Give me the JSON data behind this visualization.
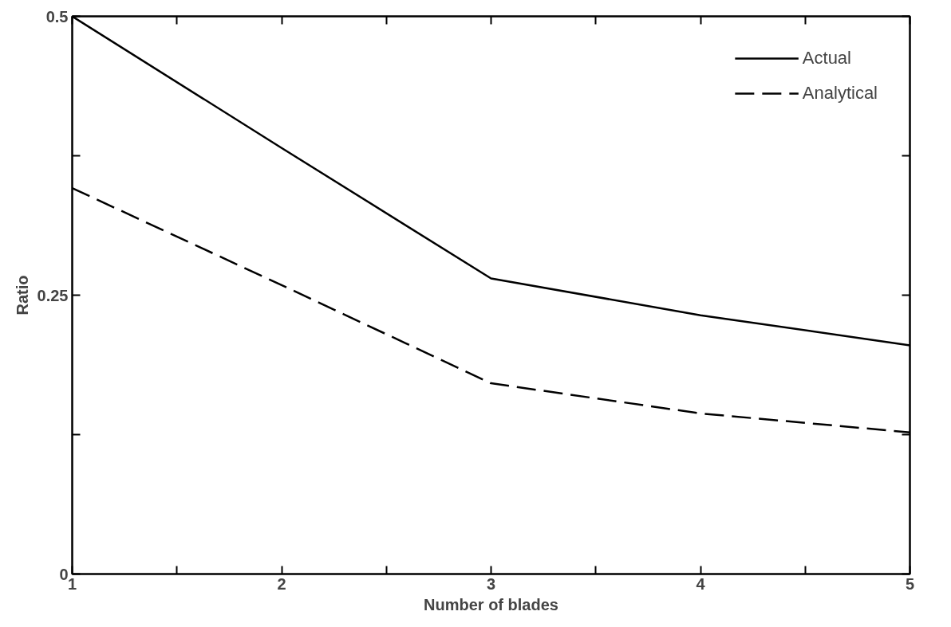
{
  "chart_data": {
    "type": "line",
    "xlabel": "Number of blades",
    "ylabel": "Ratio",
    "x": [
      1,
      2,
      3,
      4,
      5
    ],
    "series": [
      {
        "name": "Actual",
        "color": "#000000",
        "line_style": "solid",
        "values": [
          0.5,
          0.382,
          0.265,
          0.232,
          0.205
        ]
      },
      {
        "name": "Analytical",
        "color": "#000000",
        "line_style": "dashed",
        "values": [
          0.346,
          0.259,
          0.171,
          0.144,
          0.127
        ]
      }
    ],
    "xlim": [
      1,
      5
    ],
    "ylim": [
      0,
      0.5
    ],
    "xticks": [
      1,
      {
        "value": 1.5,
        "label": null
      },
      2,
      {
        "value": 2.5,
        "label": null
      },
      3,
      {
        "value": 3.5,
        "label": null
      },
      4,
      {
        "value": 4.5,
        "label": null
      },
      5
    ],
    "yticks": [
      0,
      {
        "value": 0.125,
        "label": null
      },
      0.25,
      {
        "value": 0.375,
        "label": null
      },
      0.5
    ],
    "legend": "top right",
    "grid": false,
    "marker": "none"
  }
}
